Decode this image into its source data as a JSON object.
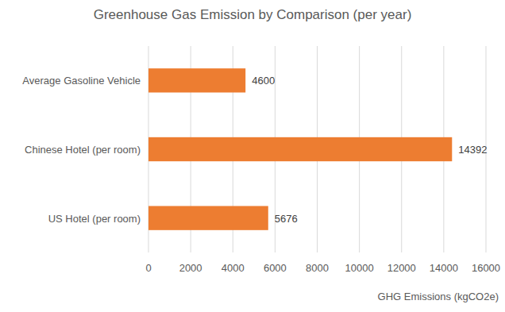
{
  "chart_data": {
    "type": "bar",
    "title": "Greenhouse Gas Emission by Comparison (per year)",
    "xlabel": "GHG Emissions (kgCO2e)",
    "categories": [
      "Average Gasoline Vehicle",
      "Chinese Hotel (per room)",
      "US Hotel (per room)"
    ],
    "values": [
      4600,
      14392,
      5676
    ],
    "color": "#ed7d31",
    "orientation": "horizontal",
    "xlim": [
      0,
      16000
    ],
    "xticks": [
      0,
      2000,
      4000,
      6000,
      8000,
      10000,
      12000,
      14000,
      16000
    ],
    "grid": true,
    "data_labels": true
  }
}
